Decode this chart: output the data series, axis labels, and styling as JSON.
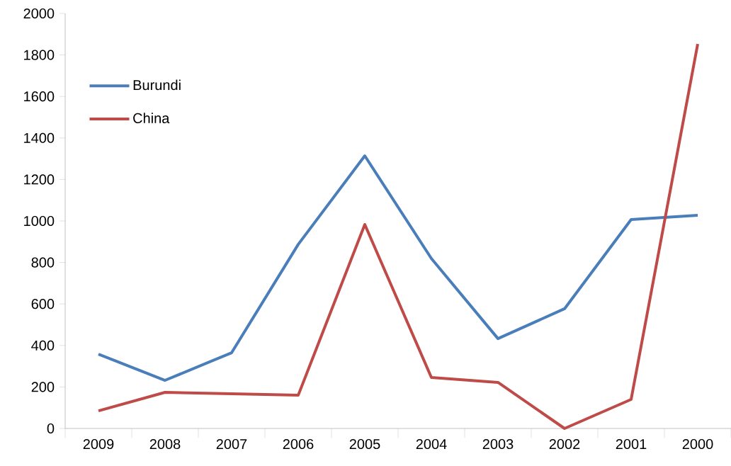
{
  "chart_data": {
    "type": "line",
    "categories": [
      "2009",
      "2008",
      "2007",
      "2006",
      "2005",
      "2004",
      "2003",
      "2002",
      "2001",
      "2000"
    ],
    "series": [
      {
        "name": "Burundi",
        "color": "#4a7ebb",
        "values": [
          358,
          232,
          365,
          887,
          1314,
          819,
          433,
          577,
          1007,
          1027
        ]
      },
      {
        "name": "China",
        "color": "#be4b48",
        "values": [
          85,
          174,
          167,
          160,
          983,
          246,
          222,
          0,
          140,
          1853
        ]
      }
    ],
    "ylim": [
      0,
      2000
    ],
    "yticks": [
      0,
      200,
      400,
      600,
      800,
      1000,
      1200,
      1400,
      1600,
      1800,
      2000
    ],
    "legend": "top left"
  }
}
